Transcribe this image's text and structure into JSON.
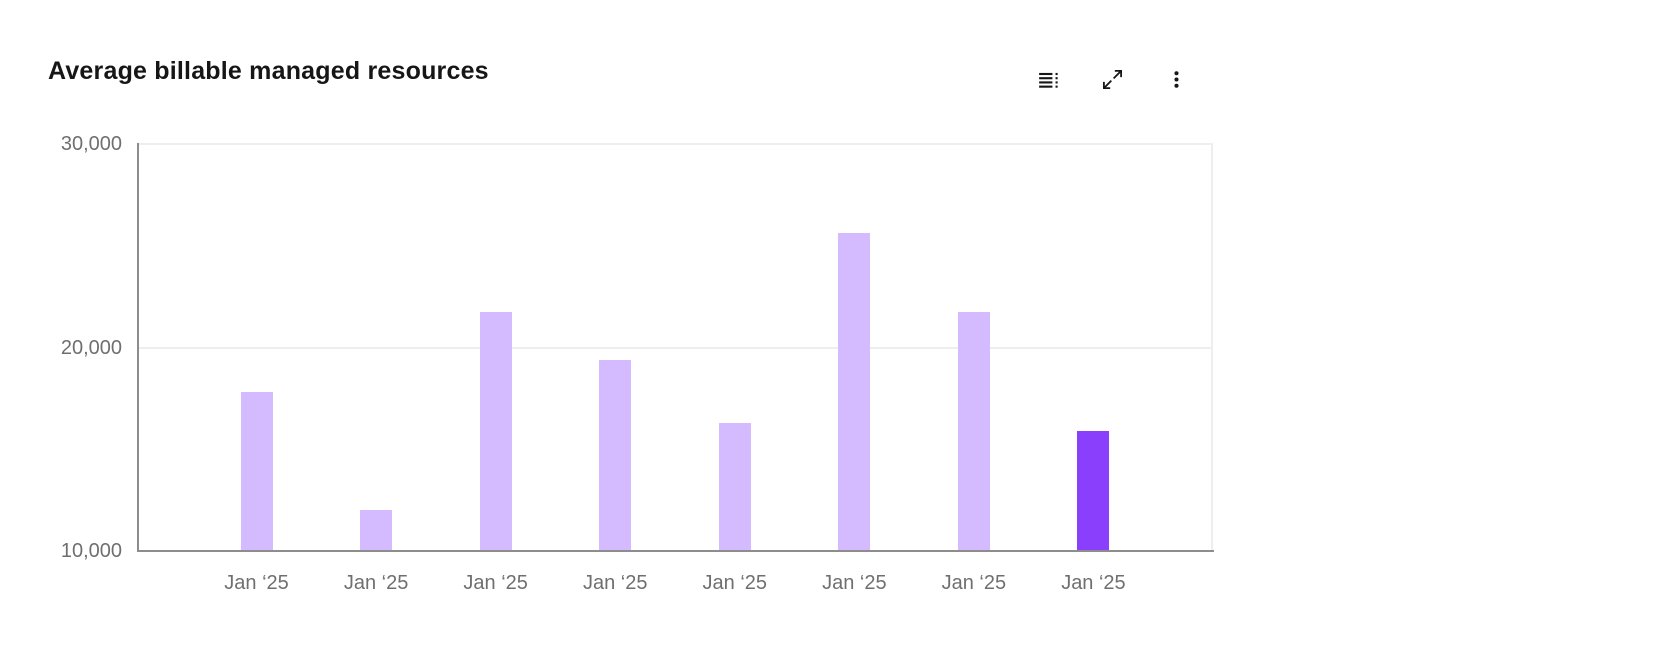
{
  "header": {
    "title": "Average billable managed resources",
    "toolbar": {
      "icons": [
        "data-table-icon",
        "expand-icon",
        "overflow-menu-icon"
      ]
    }
  },
  "chart_data": {
    "type": "bar",
    "title": "Average billable managed resources",
    "categories": [
      "Jan ‘25",
      "Jan ‘25",
      "Jan ‘25",
      "Jan ‘25",
      "Jan ‘25",
      "Jan ‘25",
      "Jan ‘25",
      "Jan ‘25"
    ],
    "values": [
      17800,
      12000,
      21750,
      19400,
      16300,
      25650,
      21750,
      15900
    ],
    "xlabel": "",
    "ylabel": "",
    "ylim": [
      10000,
      30000
    ],
    "yticks": [
      {
        "value": 10000,
        "label": "10,000"
      },
      {
        "value": 20000,
        "label": "20,000"
      },
      {
        "value": 30000,
        "label": "30,000"
      }
    ],
    "grid": "horizontal",
    "legend": "none",
    "bar_color": "#d4bbff",
    "highlight_color": "#8a3ffc",
    "highlight_index": 7
  },
  "colors": {
    "title_text": "#161616",
    "tick_text": "#6f6f6f",
    "axis_line": "#8d8d8d",
    "gridline": "#eeeeee",
    "icon": "#161616",
    "background": "#ffffff"
  }
}
